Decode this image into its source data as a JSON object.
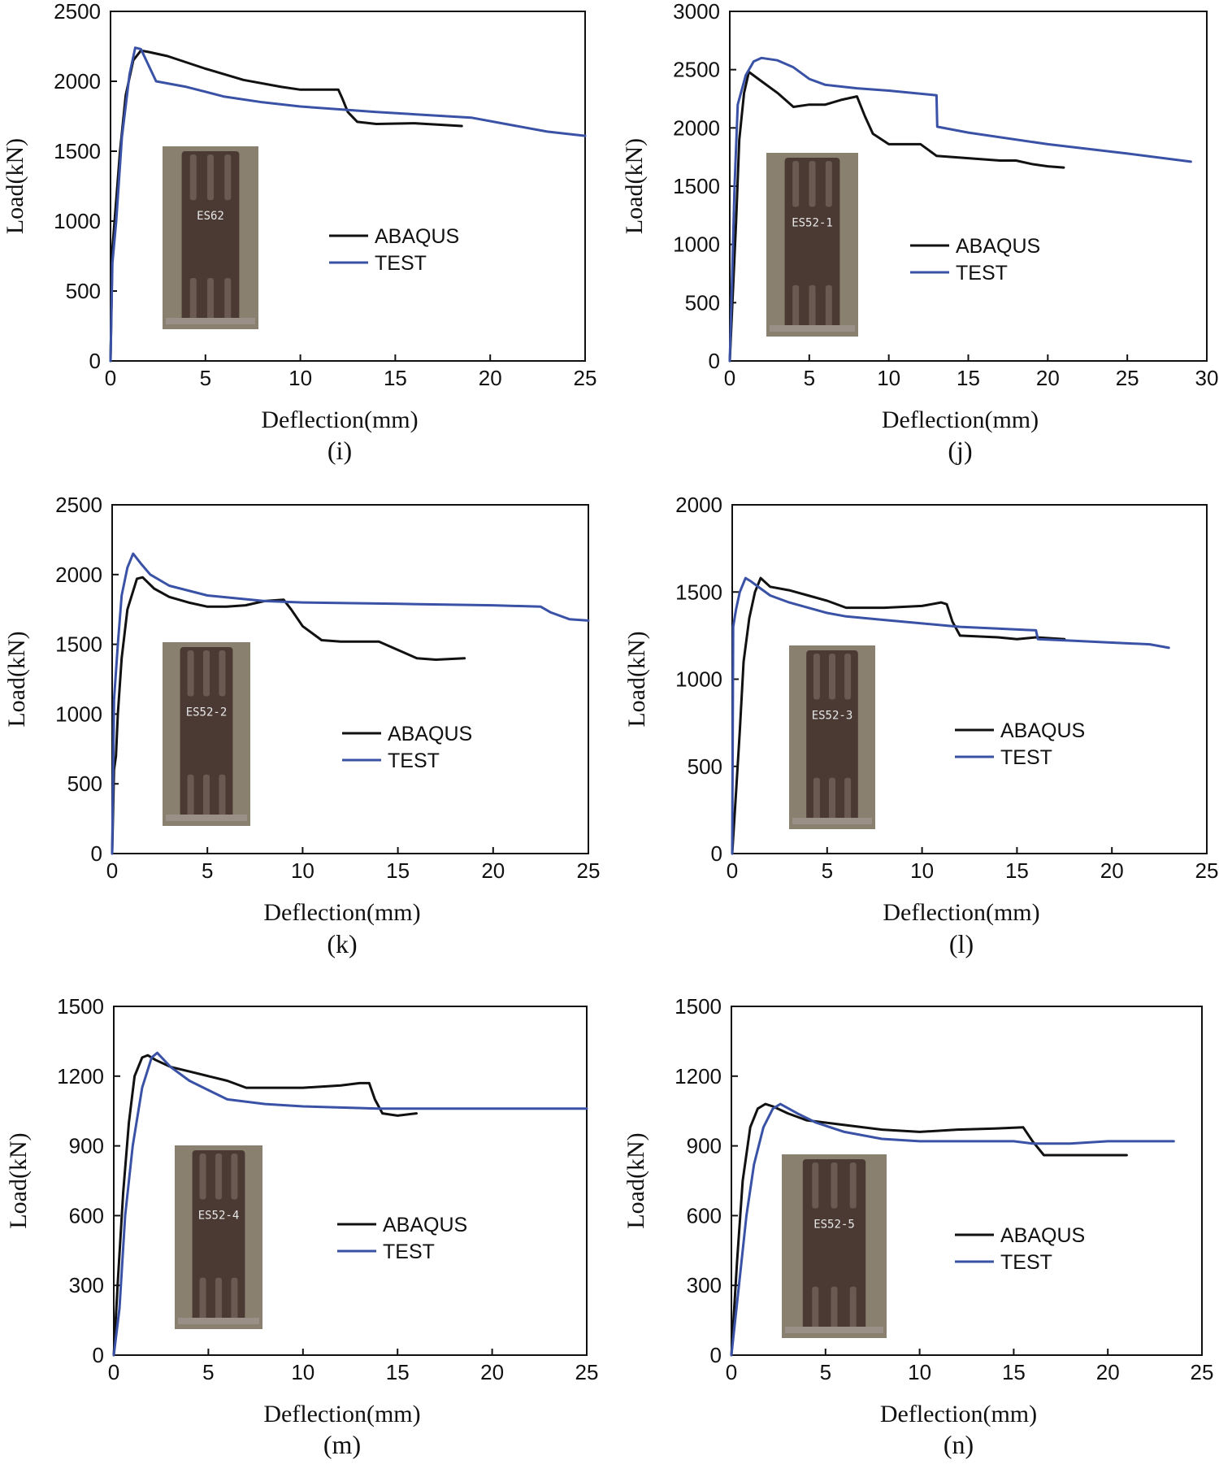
{
  "colors": {
    "abaqus": "#111111",
    "test": "#3a52a6",
    "photo_bg": "#8a8070",
    "specimen": "#4a3a33"
  },
  "chart_data": [
    {
      "id": "i",
      "type": "line",
      "panel_label": "(i)",
      "xlabel": "Deflection(mm)",
      "ylabel": "Load(kN)",
      "xlim": [
        0,
        25
      ],
      "ylim": [
        0,
        2500
      ],
      "xticks": [
        0,
        5,
        10,
        15,
        20,
        25
      ],
      "yticks": [
        0,
        500,
        1000,
        1500,
        2000,
        2500
      ],
      "legend": [
        "ABAQUS",
        "TEST"
      ],
      "inset_label": "ES62",
      "series": [
        {
          "name": "ABAQUS",
          "x": [
            0,
            0.1,
            0.3,
            0.5,
            0.8,
            1.2,
            1.6,
            2,
            3,
            5,
            7,
            9,
            10,
            12,
            12.2,
            12.5,
            13,
            14,
            16,
            18.5
          ],
          "y": [
            0,
            800,
            1150,
            1500,
            1900,
            2150,
            2220,
            2210,
            2180,
            2090,
            2010,
            1960,
            1940,
            1940,
            1880,
            1780,
            1710,
            1695,
            1700,
            1680
          ]
        },
        {
          "name": "TEST",
          "x": [
            0,
            0.1,
            0.3,
            0.6,
            1,
            1.3,
            1.6,
            2.4,
            4,
            6,
            8,
            10,
            14,
            19,
            23,
            25
          ],
          "y": [
            0,
            700,
            1000,
            1600,
            2050,
            2240,
            2230,
            2000,
            1960,
            1890,
            1850,
            1820,
            1780,
            1740,
            1640,
            1610
          ]
        }
      ]
    },
    {
      "id": "j",
      "type": "line",
      "panel_label": "(j)",
      "xlabel": "Deflection(mm)",
      "ylabel": "Load(kN)",
      "xlim": [
        0,
        30
      ],
      "ylim": [
        0,
        3000
      ],
      "xticks": [
        0,
        5,
        10,
        15,
        20,
        25,
        30
      ],
      "yticks": [
        0,
        500,
        1000,
        1500,
        2000,
        2500,
        3000
      ],
      "legend": [
        "ABAQUS",
        "TEST"
      ],
      "inset_label": "ES52-1",
      "series": [
        {
          "name": "ABAQUS",
          "x": [
            0,
            0.2,
            0.4,
            0.6,
            0.9,
            1.2,
            2,
            3,
            4,
            5,
            6,
            7,
            8,
            8.5,
            9,
            10,
            12,
            13,
            15,
            17,
            18,
            19,
            20,
            21
          ],
          "y": [
            0,
            600,
            1200,
            1900,
            2300,
            2480,
            2400,
            2300,
            2180,
            2200,
            2200,
            2240,
            2270,
            2100,
            1950,
            1860,
            1860,
            1760,
            1740,
            1720,
            1720,
            1690,
            1670,
            1660
          ]
        },
        {
          "name": "TEST",
          "x": [
            0,
            0.1,
            0.3,
            0.5,
            1,
            1.5,
            2,
            3,
            4,
            5,
            6,
            8,
            10,
            13,
            13.05,
            15,
            20,
            25,
            29
          ],
          "y": [
            0,
            500,
            1500,
            2200,
            2450,
            2570,
            2600,
            2580,
            2520,
            2420,
            2370,
            2340,
            2320,
            2280,
            2010,
            1960,
            1860,
            1780,
            1710
          ]
        }
      ]
    },
    {
      "id": "k",
      "type": "line",
      "panel_label": "(k)",
      "xlabel": "Deflection(mm)",
      "ylabel": "Load(kN)",
      "xlim": [
        0,
        25
      ],
      "ylim": [
        0,
        2500
      ],
      "xticks": [
        0,
        5,
        10,
        15,
        20,
        25
      ],
      "yticks": [
        0,
        500,
        1000,
        1500,
        2000,
        2500
      ],
      "legend": [
        "ABAQUS",
        "TEST"
      ],
      "inset_label": "ES52-2",
      "series": [
        {
          "name": "ABAQUS",
          "x": [
            0,
            0.1,
            0.2,
            0.3,
            0.5,
            0.8,
            1.3,
            1.6,
            2.2,
            3,
            4,
            5,
            6,
            7,
            8,
            9,
            9.4,
            10,
            11,
            12,
            14,
            15,
            16,
            17,
            18.5
          ],
          "y": [
            0,
            600,
            700,
            1000,
            1400,
            1750,
            1970,
            1980,
            1900,
            1840,
            1800,
            1770,
            1770,
            1780,
            1810,
            1820,
            1750,
            1630,
            1530,
            1520,
            1520,
            1460,
            1400,
            1390,
            1400
          ]
        },
        {
          "name": "TEST",
          "x": [
            0,
            0.1,
            0.3,
            0.5,
            0.8,
            1.1,
            1.5,
            2,
            3,
            5,
            8,
            10,
            15,
            20,
            22.5,
            23,
            24,
            25
          ],
          "y": [
            0,
            1100,
            1500,
            1850,
            2050,
            2150,
            2080,
            2000,
            1920,
            1850,
            1810,
            1800,
            1790,
            1780,
            1770,
            1730,
            1680,
            1670
          ]
        }
      ]
    },
    {
      "id": "l",
      "type": "line",
      "panel_label": "(l)",
      "xlabel": "Deflection(mm)",
      "ylabel": "Load(kN)",
      "xlim": [
        0,
        25
      ],
      "ylim": [
        0,
        2000
      ],
      "xticks": [
        0,
        5,
        10,
        15,
        20,
        25
      ],
      "yticks": [
        0,
        500,
        1000,
        1500,
        2000
      ],
      "legend": [
        "ABAQUS",
        "TEST"
      ],
      "inset_label": "ES52-3",
      "series": [
        {
          "name": "ABAQUS",
          "x": [
            0,
            0.2,
            0.4,
            0.6,
            0.9,
            1.2,
            1.5,
            2,
            3,
            4,
            5,
            6,
            8,
            10,
            11,
            11.3,
            11.6,
            12,
            14,
            15,
            16,
            17.5
          ],
          "y": [
            0,
            350,
            700,
            1100,
            1350,
            1500,
            1580,
            1530,
            1510,
            1480,
            1450,
            1410,
            1410,
            1420,
            1440,
            1430,
            1330,
            1250,
            1240,
            1230,
            1240,
            1230
          ]
        },
        {
          "name": "TEST",
          "x": [
            0,
            0.05,
            0.2,
            0.4,
            0.7,
            1,
            1.5,
            2,
            3,
            4,
            5,
            6,
            8,
            10,
            12,
            14,
            16,
            16.1,
            18,
            20,
            22,
            23
          ],
          "y": [
            0,
            1300,
            1400,
            1500,
            1580,
            1560,
            1520,
            1480,
            1440,
            1410,
            1380,
            1360,
            1340,
            1320,
            1300,
            1290,
            1280,
            1230,
            1220,
            1210,
            1200,
            1180
          ]
        }
      ]
    },
    {
      "id": "m",
      "type": "line",
      "panel_label": "(m)",
      "xlabel": "Deflection(mm)",
      "ylabel": "Load(kN)",
      "xlim": [
        0,
        25
      ],
      "ylim": [
        0,
        1500
      ],
      "xticks": [
        0,
        5,
        10,
        15,
        20,
        25
      ],
      "yticks": [
        0,
        300,
        600,
        900,
        1200,
        1500
      ],
      "legend": [
        "ABAQUS",
        "TEST"
      ],
      "inset_label": "ES52-4",
      "series": [
        {
          "name": "ABAQUS",
          "x": [
            0,
            0.2,
            0.5,
            0.8,
            1.1,
            1.5,
            1.8,
            2.2,
            3,
            4,
            5,
            6,
            7,
            8,
            10,
            12,
            13,
            13.5,
            13.8,
            14.2,
            15,
            16
          ],
          "y": [
            0,
            300,
            700,
            1000,
            1200,
            1280,
            1290,
            1270,
            1240,
            1220,
            1200,
            1180,
            1150,
            1150,
            1150,
            1160,
            1170,
            1170,
            1100,
            1040,
            1030,
            1040
          ]
        },
        {
          "name": "TEST",
          "x": [
            0,
            0.3,
            0.6,
            1,
            1.5,
            2,
            2.3,
            3,
            4,
            5,
            6,
            7,
            8,
            10,
            14,
            15,
            20,
            25
          ],
          "y": [
            0,
            200,
            600,
            900,
            1150,
            1280,
            1300,
            1240,
            1180,
            1140,
            1100,
            1090,
            1080,
            1070,
            1060,
            1060,
            1060,
            1060
          ]
        }
      ]
    },
    {
      "id": "n",
      "type": "line",
      "panel_label": "(n)",
      "xlabel": "Deflection(mm)",
      "ylabel": "Load(kN)",
      "xlim": [
        0,
        25
      ],
      "ylim": [
        0,
        1500
      ],
      "xticks": [
        0,
        5,
        10,
        15,
        20,
        25
      ],
      "yticks": [
        0,
        300,
        600,
        900,
        1200,
        1500
      ],
      "legend": [
        "ABAQUS",
        "TEST"
      ],
      "inset_label": "ES52-5",
      "series": [
        {
          "name": "ABAQUS",
          "x": [
            0,
            0.3,
            0.6,
            1,
            1.4,
            1.8,
            2.2,
            3,
            4,
            5,
            6,
            8,
            10,
            12,
            14,
            15.5,
            16,
            16.6,
            17,
            18,
            20,
            21
          ],
          "y": [
            0,
            400,
            750,
            980,
            1060,
            1080,
            1070,
            1040,
            1010,
            1000,
            990,
            970,
            960,
            970,
            975,
            980,
            920,
            860,
            860,
            860,
            860,
            860
          ]
        },
        {
          "name": "TEST",
          "x": [
            0,
            0.4,
            0.8,
            1.2,
            1.7,
            2.2,
            2.6,
            3.5,
            4.5,
            6,
            8,
            10,
            12,
            15,
            16,
            18,
            20,
            22,
            23.5
          ],
          "y": [
            0,
            300,
            600,
            820,
            980,
            1060,
            1080,
            1040,
            1000,
            960,
            930,
            920,
            920,
            920,
            910,
            910,
            920,
            920,
            920
          ]
        }
      ]
    }
  ]
}
